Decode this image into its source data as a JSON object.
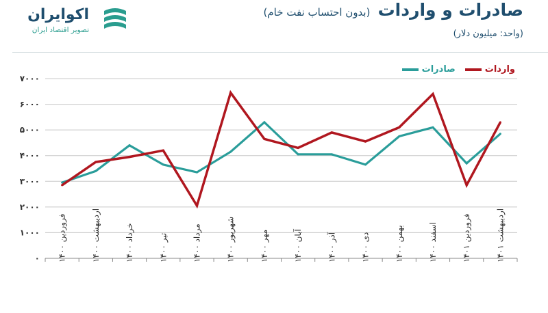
{
  "header": {
    "title": "صادرات و واردات",
    "subtitle": "(بدون احتساب نفت خام)",
    "unit": "(واحد: میلیون دلار)"
  },
  "logo": {
    "name": "اکوایران",
    "tagline": "تصویر اقتصاد ایران"
  },
  "colors": {
    "exports": "#2a9d9a",
    "imports": "#b0171f",
    "brand": "#1f4e6e",
    "grid": "#c8c8c8"
  },
  "chart_data": {
    "type": "line",
    "title": "صادرات و واردات",
    "categories": [
      "فروردین ۱۴۰۰",
      "اردیبهشت ۱۴۰۰",
      "خرداد ۱۴۰۰",
      "تیر ۱۴۰۰",
      "مرداد ۱۴۰۰",
      "شهریور ۱۴۰۰",
      "مهر ۱۴۰۰",
      "آبان ۱۴۰۰",
      "آذر ۱۴۰۰",
      "دی ۱۴۰۰",
      "بهمن ۱۴۰۰",
      "اسفند ۱۴۰۰",
      "فروردین ۱۴۰۱",
      "اردیبهشت ۱۴۰۱"
    ],
    "series": [
      {
        "name": "صادرات",
        "values": [
          2950,
          3400,
          4400,
          3650,
          3350,
          4150,
          5300,
          4050,
          4050,
          3650,
          4750,
          5100,
          3700,
          4850
        ]
      },
      {
        "name": "واردات",
        "values": [
          2850,
          3750,
          3950,
          4200,
          2050,
          6450,
          4650,
          4300,
          4900,
          4550,
          5100,
          6400,
          2850,
          5300
        ]
      }
    ],
    "yticks": [
      "۰",
      "۱۰۰۰",
      "۲۰۰۰",
      "۳۰۰۰",
      "۴۰۰۰",
      "۵۰۰۰",
      "۶۰۰۰",
      "۷۰۰۰"
    ],
    "ylim": [
      0,
      7000
    ],
    "grid": true,
    "legend_position": "top-right"
  }
}
